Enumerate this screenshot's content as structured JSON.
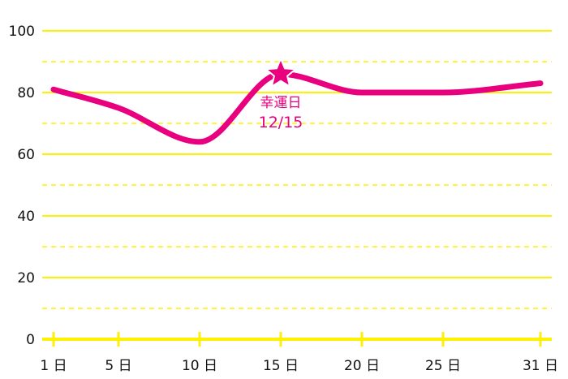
{
  "chart_data": {
    "type": "line",
    "x_unit": "日",
    "x": [
      1,
      5,
      10,
      15,
      20,
      25,
      31
    ],
    "xticks": [
      1,
      5,
      10,
      15,
      20,
      25,
      31
    ],
    "xtick_labels": [
      "1 日",
      "5 日",
      "10 日",
      "15 日",
      "20 日",
      "25 日",
      "31 日"
    ],
    "ylim": [
      0,
      100
    ],
    "yticks": [
      0,
      20,
      40,
      60,
      80,
      100
    ],
    "ytick_labels": [
      "0",
      "20",
      "40",
      "60",
      "80",
      "100"
    ],
    "minor_gridlines_every": 10,
    "grid": true,
    "series": [
      {
        "values": [
          81,
          75,
          64,
          86,
          80,
          80,
          83
        ]
      }
    ],
    "highlight": {
      "x": 15,
      "y": 86,
      "marker": "star",
      "label_line1": "幸運日",
      "label_line2": "12/15"
    },
    "colors": {
      "line": "#e8007f",
      "axis": "#fff200",
      "grid": "#fff200",
      "text": "#111111"
    }
  }
}
